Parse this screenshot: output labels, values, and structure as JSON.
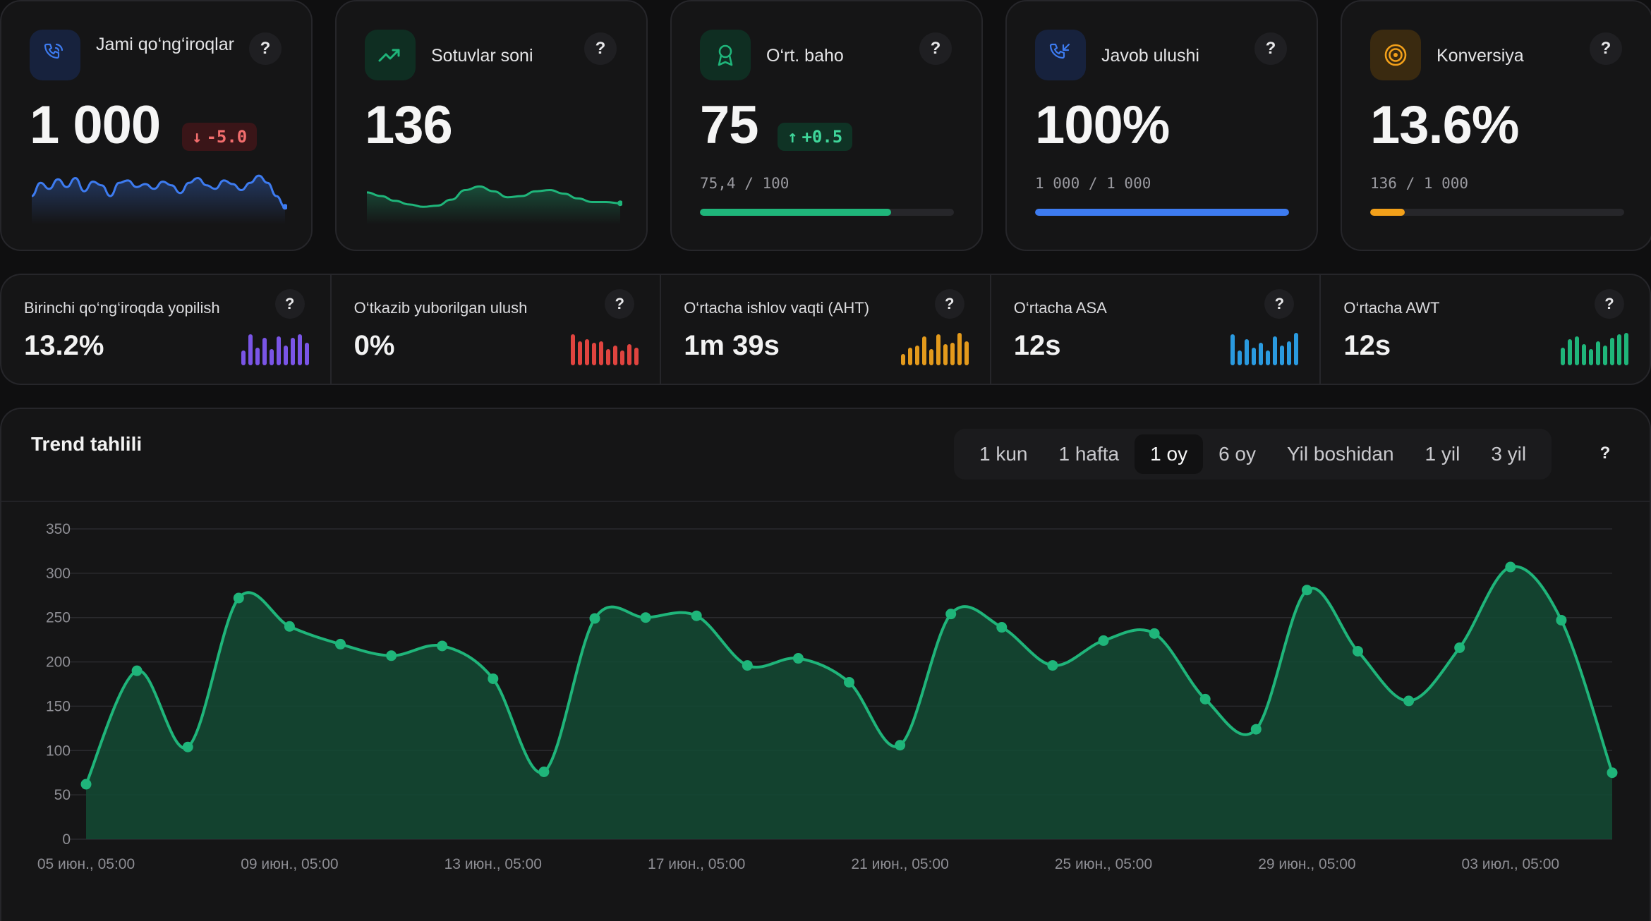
{
  "kpis": [
    {
      "title": "Jami qo‘ng‘iroqlar",
      "value": "1 000",
      "delta": "-5.0",
      "delta_dir": "down",
      "icon": "phone-icon",
      "accent": "#3d7bf0",
      "spark": [
        40,
        62,
        52,
        68,
        55,
        70,
        48,
        64,
        58,
        40,
        62,
        66,
        55,
        60,
        52,
        64,
        58,
        45,
        62,
        70,
        58,
        52,
        66,
        60,
        50,
        62,
        74,
        62,
        40,
        22
      ]
    },
    {
      "title": "Sotuvlar soni",
      "value": "136",
      "icon": "trending-up-icon",
      "accent": "#1fb57a",
      "spark": [
        46,
        40,
        32,
        26,
        22,
        24,
        34,
        50,
        56,
        48,
        38,
        40,
        48,
        50,
        44,
        36,
        30,
        30,
        28
      ]
    },
    {
      "title": "O‘rt. baho",
      "value": "75",
      "delta": "+0.5",
      "delta_dir": "up",
      "sub": "75,4 / 100",
      "progress": 0.754,
      "icon": "award-icon",
      "accent": "#1fb57a"
    },
    {
      "title": "Javob ulushi",
      "value": "100%",
      "sub": "1 000 / 1 000",
      "progress": 1.0,
      "icon": "phone-incoming-icon",
      "accent": "#3d7bf0"
    },
    {
      "title": "Konversiya",
      "value": "13.6%",
      "sub": "136 / 1 000",
      "progress": 0.136,
      "icon": "target-icon",
      "accent": "#f2a01a"
    }
  ],
  "minis": [
    {
      "label": "Birinchi qo‘ng‘iroqda yopilish",
      "value": "13.2%",
      "color": "#7a55e6",
      "bars": [
        0.45,
        0.95,
        0.55,
        0.85,
        0.5,
        0.9,
        0.6,
        0.85,
        0.95,
        0.7
      ]
    },
    {
      "label": "O‘tkazib yuborilgan ulush",
      "value": "0%",
      "color": "#e0443f",
      "bars": [
        0.95,
        0.75,
        0.8,
        0.7,
        0.75,
        0.5,
        0.6,
        0.45,
        0.65,
        0.55
      ]
    },
    {
      "label": "O‘rtacha ishlov vaqti (AHT)",
      "value": "1m 39s",
      "color": "#e39a1c",
      "bars": [
        0.35,
        0.55,
        0.6,
        0.9,
        0.5,
        0.95,
        0.65,
        0.7,
        1.0,
        0.75
      ]
    },
    {
      "label": "O‘rtacha ASA",
      "value": "12s",
      "color": "#2a9adf",
      "bars": [
        0.95,
        0.45,
        0.8,
        0.55,
        0.7,
        0.45,
        0.9,
        0.6,
        0.75,
        1.0
      ]
    },
    {
      "label": "O‘rtacha AWT",
      "value": "12s",
      "color": "#1fb57a",
      "bars": [
        0.55,
        0.8,
        0.9,
        0.65,
        0.5,
        0.75,
        0.6,
        0.85,
        0.95,
        1.0
      ]
    }
  ],
  "trend": {
    "title": "Trend tahlili",
    "periods": [
      "1 kun",
      "1 hafta",
      "1 oy",
      "6 oy",
      "Yil boshidan",
      "1 yil",
      "3 yil"
    ],
    "active_period": "1 oy",
    "help": "?"
  },
  "chart_data": {
    "type": "area",
    "title": "",
    "xlabel": "",
    "ylabel": "",
    "ylim": [
      0,
      350
    ],
    "yticks": [
      0,
      50,
      100,
      150,
      200,
      250,
      300,
      350
    ],
    "grid": true,
    "color": "#1fb57a",
    "x_tick_labels": [
      "05 июн., 05:00",
      "09 июн., 05:00",
      "13 июн., 05:00",
      "17 июн., 05:00",
      "21 июн., 05:00",
      "25 июн., 05:00",
      "29 июн., 05:00",
      "03 июл., 05:00"
    ],
    "x": [
      "05 июн.",
      "06 июн.",
      "07 июн.",
      "08 июн.",
      "09 июн.",
      "10 июн.",
      "11 июн.",
      "12 июн.",
      "13 июн.",
      "14 июн.",
      "15 июн.",
      "16 июн.",
      "17 июн.",
      "18 июн.",
      "19 июн.",
      "20 июн.",
      "21 июн.",
      "22 июн.",
      "23 июн.",
      "24 июн.",
      "25 июн.",
      "26 июн.",
      "27 июн.",
      "28 июн.",
      "29 июн.",
      "30 июн.",
      "01 июл.",
      "02 июл.",
      "03 июл.",
      "04 июл.",
      "05 июл."
    ],
    "values": [
      62,
      190,
      104,
      272,
      240,
      220,
      207,
      218,
      181,
      76,
      249,
      250,
      252,
      196,
      204,
      177,
      106,
      254,
      239,
      196,
      224,
      232,
      158,
      124,
      281,
      212,
      156,
      216,
      307,
      247,
      75
    ]
  }
}
